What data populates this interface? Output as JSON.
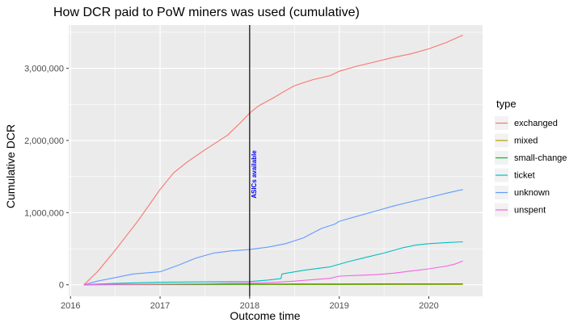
{
  "chart_data": {
    "type": "line",
    "title": "How DCR paid to PoW miners was used (cumulative)",
    "xlabel": "Outcome time",
    "ylabel": "Cumulative DCR",
    "xlim": [
      2015.98,
      2020.6
    ],
    "ylim": [
      -160000,
      3600000
    ],
    "x_ticks": [
      2016,
      2017,
      2018,
      2019,
      2020
    ],
    "x_tick_labels": [
      "2016",
      "2017",
      "2018",
      "2019",
      "2020"
    ],
    "y_ticks": [
      0,
      1000000,
      2000000,
      3000000
    ],
    "y_tick_labels": [
      "0",
      "1,000,000",
      "2,000,000",
      "3,000,000"
    ],
    "grid": true,
    "background": "#ebebeb",
    "legend": {
      "title": "type",
      "placement": "right",
      "entries": [
        "exchanged",
        "mixed",
        "small-change",
        "ticket",
        "unknown",
        "unspent"
      ]
    },
    "annotation": {
      "x": 2018.0,
      "text": "ASICs available",
      "color": "#0000ff"
    },
    "series": [
      {
        "name": "exchanged",
        "color": "#F8766D",
        "x": [
          2016.15,
          2016.3,
          2016.5,
          2016.75,
          2017.0,
          2017.15,
          2017.3,
          2017.5,
          2017.75,
          2017.9,
          2018.0,
          2018.1,
          2018.25,
          2018.4,
          2018.5,
          2018.7,
          2018.9,
          2019.0,
          2019.2,
          2019.4,
          2019.6,
          2019.8,
          2020.0,
          2020.2,
          2020.38
        ],
        "values": [
          0,
          180000,
          480000,
          880000,
          1320000,
          1550000,
          1700000,
          1870000,
          2070000,
          2250000,
          2380000,
          2480000,
          2580000,
          2690000,
          2760000,
          2840000,
          2900000,
          2960000,
          3030000,
          3090000,
          3150000,
          3200000,
          3270000,
          3360000,
          3460000
        ]
      },
      {
        "name": "mixed",
        "color": "#B79F00",
        "x": [
          2016.15,
          2017.0,
          2018.0,
          2019.0,
          2020.38
        ],
        "values": [
          0,
          1000,
          2000,
          3000,
          4000
        ]
      },
      {
        "name": "small-change",
        "color": "#00BA38",
        "x": [
          2016.15,
          2016.5,
          2017.0,
          2017.5,
          2018.0,
          2018.5,
          2019.0,
          2019.5,
          2020.0,
          2020.38
        ],
        "values": [
          0,
          4000,
          7000,
          9000,
          10000,
          11000,
          11500,
          12000,
          12500,
          13000
        ]
      },
      {
        "name": "ticket",
        "color": "#00BFC4",
        "x": [
          2016.15,
          2016.5,
          2017.0,
          2017.5,
          2018.0,
          2018.2,
          2018.35,
          2018.36,
          2018.6,
          2018.9,
          2019.1,
          2019.3,
          2019.5,
          2019.7,
          2019.85,
          2020.0,
          2020.2,
          2020.38
        ],
        "values": [
          0,
          20000,
          35000,
          40000,
          45000,
          65000,
          85000,
          150000,
          200000,
          250000,
          320000,
          380000,
          440000,
          510000,
          550000,
          570000,
          585000,
          595000
        ]
      },
      {
        "name": "unknown",
        "color": "#619CFF",
        "x": [
          2016.15,
          2016.3,
          2016.5,
          2016.7,
          2017.0,
          2017.2,
          2017.4,
          2017.6,
          2017.8,
          2018.0,
          2018.2,
          2018.4,
          2018.6,
          2018.8,
          2018.95,
          2019.0,
          2019.2,
          2019.4,
          2019.6,
          2019.8,
          2020.0,
          2020.2,
          2020.38
        ],
        "values": [
          0,
          50000,
          100000,
          150000,
          180000,
          270000,
          370000,
          440000,
          470000,
          490000,
          520000,
          570000,
          650000,
          780000,
          840000,
          880000,
          950000,
          1020000,
          1090000,
          1150000,
          1210000,
          1270000,
          1320000
        ]
      },
      {
        "name": "unspent",
        "color": "#F564E3",
        "x": [
          2016.15,
          2016.5,
          2017.0,
          2017.5,
          2018.0,
          2018.3,
          2018.5,
          2018.7,
          2018.9,
          2019.0,
          2019.2,
          2019.4,
          2019.6,
          2019.8,
          2020.0,
          2020.2,
          2020.3,
          2020.38
        ],
        "values": [
          0,
          5000,
          10000,
          15000,
          25000,
          35000,
          50000,
          70000,
          90000,
          120000,
          130000,
          140000,
          160000,
          190000,
          220000,
          260000,
          290000,
          330000
        ]
      }
    ]
  }
}
